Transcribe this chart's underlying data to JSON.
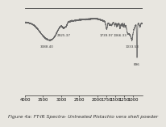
{
  "title": "Figure 4a: FT-IR Spectra- Untreated Pistachio vera shell powder",
  "line_color": "#666666",
  "background_color": "#e8e6e0",
  "plot_bg": "#e8e6e0",
  "annotations": [
    {
      "x": 3388.4,
      "label": "3388.40",
      "yoff": -0.09
    },
    {
      "x": 2925.37,
      "label": "2925.37",
      "yoff": -0.09
    },
    {
      "x": 1739.97,
      "label": "1739.97",
      "yoff": -0.09
    },
    {
      "x": 1366.33,
      "label": "1366.33",
      "yoff": -0.09
    },
    {
      "x": 1033.53,
      "label": "1033.53",
      "yoff": -0.09
    },
    {
      "x": 896,
      "label": "896",
      "yoff": -0.09
    }
  ],
  "xticks": [
    4000,
    3500,
    3000,
    2500,
    2000,
    1750,
    1500,
    1250,
    1000
  ],
  "xmin": 4000,
  "xmax": 750,
  "ymin": 0.0,
  "ymax": 1.0,
  "title_fontsize": 4.2,
  "tick_fontsize": 3.8,
  "linewidth": 0.55
}
